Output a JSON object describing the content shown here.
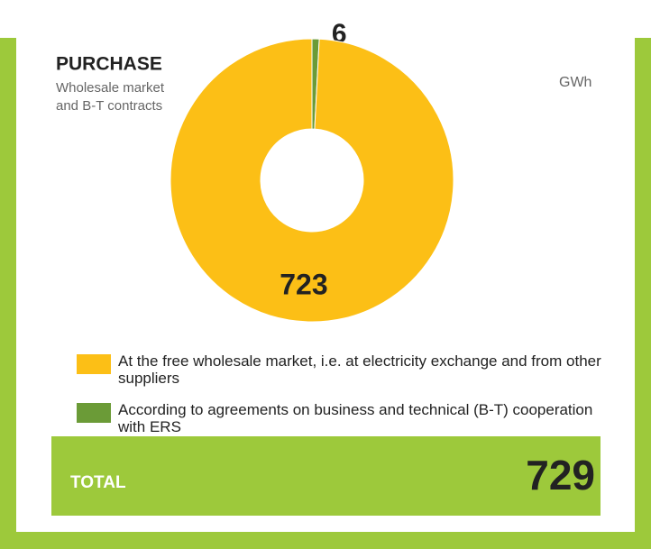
{
  "chart_data": {
    "type": "donut",
    "title": "PURCHASE",
    "subtitle": [
      "Wholesale market",
      "and B-T contracts"
    ],
    "unit": "GWh",
    "categories": [
      "At the free wholesale market, i.e. at electricity exchange and from other suppliers",
      "According to agreements on business and technical (B-T) cooperation with ERS"
    ],
    "values": [
      723,
      6
    ],
    "colors": [
      "#fcbf16",
      "#6b9b37"
    ],
    "total_label": "TOTAL",
    "total": 729
  }
}
